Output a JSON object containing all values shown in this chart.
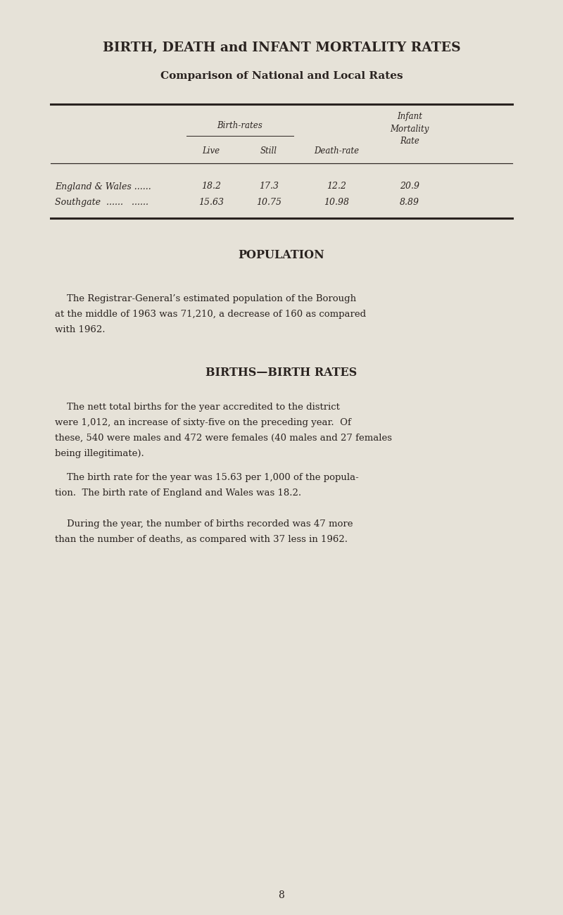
{
  "title": "BIRTH, DEATH and INFANT MORTALITY RATES",
  "subtitle": "Comparison of National and Local Rates",
  "bg_color": "#e6e2d8",
  "text_color": "#2a2320",
  "table": {
    "row_labels": [
      "England & Wales ......",
      "Southgate  ......   ......"
    ],
    "data": [
      [
        "18.2",
        "17.3",
        "12.2",
        "20.9"
      ],
      [
        "15.63",
        "10.75",
        "10.98",
        "8.89"
      ]
    ]
  },
  "section_population_title": "POPULATION",
  "section_population_text1": "    The Registrar-General’s estimated population of the Borough",
  "section_population_text2": "at the middle of 1963 was 71,210, a decrease of 160 as compared",
  "section_population_text3": "with 1962.",
  "section_births_title": "BIRTHS—BIRTH RATES",
  "births_para1_lines": [
    "    The nett total births for the year accredited to the district",
    "were 1,012, an increase of sixty-five on the preceding year.  Of",
    "these, 540 were males and 472 were females (40 males and 27 females",
    "being illegitimate)."
  ],
  "births_para2_lines": [
    "    The birth rate for the year was 15.63 per 1,000 of the popula-",
    "tion.  The birth rate of England and Wales was 18.2."
  ],
  "births_para3_lines": [
    "    During the year, the number of births recorded was 47 more",
    "than the number of deaths, as compared with 37 less in 1962."
  ],
  "page_number": "8"
}
